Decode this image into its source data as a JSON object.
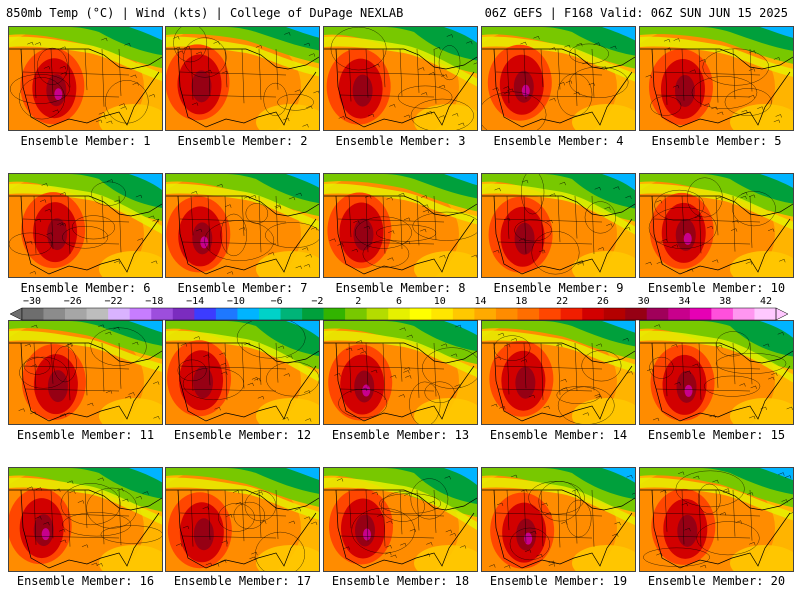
{
  "header": {
    "left": "850mb Temp (°C) | Wind (kts) | College of DuPage NEXLAB",
    "right": "06Z GEFS | F168 Valid: 06Z SUN JUN 15 2025"
  },
  "panels": [
    {
      "label": "Ensemble Member: 1"
    },
    {
      "label": "Ensemble Member: 2"
    },
    {
      "label": "Ensemble Member: 3"
    },
    {
      "label": "Ensemble Member: 4"
    },
    {
      "label": "Ensemble Member: 5"
    },
    {
      "label": "Ensemble Member: 6"
    },
    {
      "label": "Ensemble Member: 7"
    },
    {
      "label": "Ensemble Member: 8"
    },
    {
      "label": "Ensemble Member: 9"
    },
    {
      "label": "Ensemble Member: 10"
    },
    {
      "label": "Ensemble Member: 11"
    },
    {
      "label": "Ensemble Member: 12"
    },
    {
      "label": "Ensemble Member: 13"
    },
    {
      "label": "Ensemble Member: 14"
    },
    {
      "label": "Ensemble Member: 15"
    },
    {
      "label": "Ensemble Member: 16"
    },
    {
      "label": "Ensemble Member: 17"
    },
    {
      "label": "Ensemble Member: 18"
    },
    {
      "label": "Ensemble Member: 19"
    },
    {
      "label": "Ensemble Member: 20"
    }
  ],
  "colorbar": {
    "tick_labels": [
      "−30",
      "−26",
      "−22",
      "−18",
      "−14",
      "−10",
      "−6",
      "−2",
      "2",
      "6",
      "10",
      "14",
      "18",
      "22",
      "26",
      "30",
      "34",
      "38",
      "42"
    ],
    "colors": [
      "#6e6e6e",
      "#8c8c8c",
      "#a6a6a6",
      "#bdbdbd",
      "#d9b3ff",
      "#c77dff",
      "#9d4edd",
      "#7b2cbf",
      "#3c3cff",
      "#1e78ff",
      "#00b4ff",
      "#00d2c8",
      "#00b478",
      "#00a03c",
      "#32b400",
      "#78c800",
      "#b4dc00",
      "#e6f000",
      "#ffff00",
      "#ffe600",
      "#ffc800",
      "#ffaa00",
      "#ff8c00",
      "#ff6e00",
      "#ff4600",
      "#f01e00",
      "#d20000",
      "#b40000",
      "#960014",
      "#a0005a",
      "#c8008c",
      "#e600b4",
      "#ff50dc",
      "#ff96f0",
      "#ffc8ff"
    ]
  }
}
